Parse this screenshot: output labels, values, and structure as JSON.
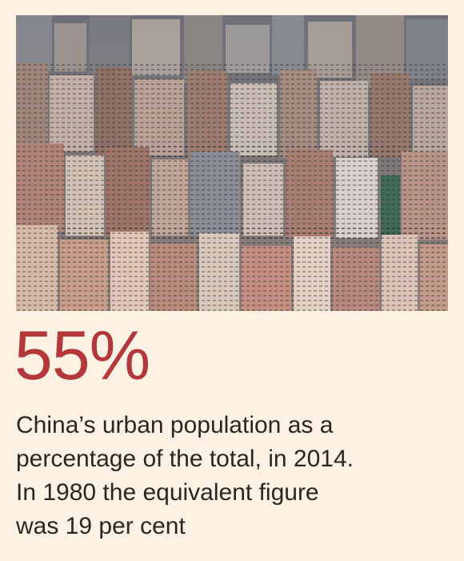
{
  "photo": {
    "subject": "dense-city-apartment-blocks"
  },
  "stat": {
    "value": "55%",
    "color": "#b3383c"
  },
  "caption": {
    "lines": [
      "China’s urban population as a",
      "percentage of the total, in 2014.",
      "In 1980 the equivalent figure",
      "was 19 per cent"
    ]
  },
  "colors": {
    "background": "#fdf1e4",
    "text": "#2b2622"
  }
}
